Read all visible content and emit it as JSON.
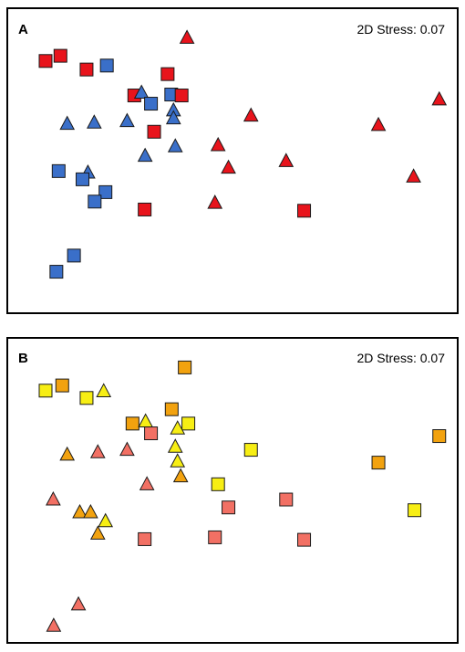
{
  "chart_data": [
    {
      "type": "scatter",
      "panel_label": "A",
      "annotation": "2D Stress: 0.07",
      "xlim": [
        0,
        100
      ],
      "ylim": [
        0,
        100
      ],
      "grid": false,
      "points": [
        {
          "x": 8.5,
          "y": 82.7,
          "shape": "square",
          "color": "#e8141c"
        },
        {
          "x": 11.8,
          "y": 84.4,
          "shape": "square",
          "color": "#e8141c"
        },
        {
          "x": 17.6,
          "y": 79.9,
          "shape": "square",
          "color": "#e8141c"
        },
        {
          "x": 22.1,
          "y": 81.2,
          "shape": "square",
          "color": "#3a6fc9"
        },
        {
          "x": 28.2,
          "y": 71.4,
          "shape": "square",
          "color": "#e8141c"
        },
        {
          "x": 29.8,
          "y": 72.3,
          "shape": "triangle",
          "color": "#3a6fc9"
        },
        {
          "x": 31.9,
          "y": 68.7,
          "shape": "square",
          "color": "#3a6fc9"
        },
        {
          "x": 35.6,
          "y": 78.4,
          "shape": "square",
          "color": "#e8141c"
        },
        {
          "x": 36.4,
          "y": 71.7,
          "shape": "square",
          "color": "#3a6fc9"
        },
        {
          "x": 38.7,
          "y": 71.4,
          "shape": "square",
          "color": "#e8141c"
        },
        {
          "x": 39.9,
          "y": 90.3,
          "shape": "triangle",
          "color": "#e8141c"
        },
        {
          "x": 36.9,
          "y": 66.5,
          "shape": "triangle",
          "color": "#3a6fc9"
        },
        {
          "x": 36.9,
          "y": 63.9,
          "shape": "triangle",
          "color": "#3a6fc9"
        },
        {
          "x": 13.3,
          "y": 62.1,
          "shape": "triangle",
          "color": "#3a6fc9"
        },
        {
          "x": 19.3,
          "y": 62.5,
          "shape": "triangle",
          "color": "#3a6fc9"
        },
        {
          "x": 26.6,
          "y": 63.0,
          "shape": "triangle",
          "color": "#3a6fc9"
        },
        {
          "x": 32.6,
          "y": 59.5,
          "shape": "square",
          "color": "#e8141c"
        },
        {
          "x": 37.3,
          "y": 54.7,
          "shape": "triangle",
          "color": "#3a6fc9"
        },
        {
          "x": 30.6,
          "y": 51.6,
          "shape": "triangle",
          "color": "#3a6fc9"
        },
        {
          "x": 11.4,
          "y": 46.6,
          "shape": "square",
          "color": "#3a6fc9"
        },
        {
          "x": 17.9,
          "y": 46.1,
          "shape": "triangle",
          "color": "#3a6fc9"
        },
        {
          "x": 16.7,
          "y": 43.9,
          "shape": "square",
          "color": "#3a6fc9"
        },
        {
          "x": 21.8,
          "y": 39.7,
          "shape": "square",
          "color": "#3a6fc9"
        },
        {
          "x": 19.4,
          "y": 36.6,
          "shape": "square",
          "color": "#3a6fc9"
        },
        {
          "x": 30.5,
          "y": 34.0,
          "shape": "square",
          "color": "#e8141c"
        },
        {
          "x": 46.8,
          "y": 55.1,
          "shape": "triangle",
          "color": "#e8141c"
        },
        {
          "x": 54.1,
          "y": 64.8,
          "shape": "triangle",
          "color": "#e8141c"
        },
        {
          "x": 49.1,
          "y": 47.7,
          "shape": "triangle",
          "color": "#e8141c"
        },
        {
          "x": 46.1,
          "y": 36.2,
          "shape": "triangle",
          "color": "#e8141c"
        },
        {
          "x": 61.9,
          "y": 49.9,
          "shape": "triangle",
          "color": "#e8141c"
        },
        {
          "x": 65.9,
          "y": 33.6,
          "shape": "square",
          "color": "#e8141c"
        },
        {
          "x": 82.4,
          "y": 61.7,
          "shape": "triangle",
          "color": "#e8141c"
        },
        {
          "x": 95.9,
          "y": 70.1,
          "shape": "triangle",
          "color": "#e8141c"
        },
        {
          "x": 90.2,
          "y": 44.8,
          "shape": "triangle",
          "color": "#e8141c"
        },
        {
          "x": 10.9,
          "y": 13.6,
          "shape": "square",
          "color": "#3a6fc9"
        },
        {
          "x": 14.8,
          "y": 18.9,
          "shape": "square",
          "color": "#3a6fc9"
        }
      ]
    },
    {
      "type": "scatter",
      "panel_label": "B",
      "annotation": "2D Stress: 0.07",
      "xlim": [
        0,
        100
      ],
      "ylim": [
        0,
        100
      ],
      "grid": false,
      "points": [
        {
          "x": 39.4,
          "y": 90.3,
          "shape": "square",
          "color": "#f2a20f"
        },
        {
          "x": 8.5,
          "y": 82.7,
          "shape": "square",
          "color": "#f7ee14"
        },
        {
          "x": 12.2,
          "y": 84.4,
          "shape": "square",
          "color": "#f2a20f"
        },
        {
          "x": 17.6,
          "y": 80.3,
          "shape": "square",
          "color": "#f7ee14"
        },
        {
          "x": 21.4,
          "y": 82.5,
          "shape": "triangle",
          "color": "#f7ee14"
        },
        {
          "x": 27.8,
          "y": 71.9,
          "shape": "square",
          "color": "#f2a20f"
        },
        {
          "x": 30.7,
          "y": 72.6,
          "shape": "triangle",
          "color": "#f7ee14"
        },
        {
          "x": 31.9,
          "y": 68.7,
          "shape": "square",
          "color": "#f27064"
        },
        {
          "x": 36.5,
          "y": 76.6,
          "shape": "square",
          "color": "#f2a20f"
        },
        {
          "x": 40.2,
          "y": 71.9,
          "shape": "square",
          "color": "#f7ee14"
        },
        {
          "x": 37.8,
          "y": 70.3,
          "shape": "triangle",
          "color": "#f7ee14"
        },
        {
          "x": 37.3,
          "y": 64.3,
          "shape": "triangle",
          "color": "#f7ee14"
        },
        {
          "x": 37.8,
          "y": 59.5,
          "shape": "triangle",
          "color": "#f7ee14"
        },
        {
          "x": 38.5,
          "y": 54.6,
          "shape": "triangle",
          "color": "#f2a20f"
        },
        {
          "x": 13.3,
          "y": 61.7,
          "shape": "triangle",
          "color": "#f2a20f"
        },
        {
          "x": 20.1,
          "y": 62.5,
          "shape": "triangle",
          "color": "#f27064"
        },
        {
          "x": 26.6,
          "y": 63.3,
          "shape": "triangle",
          "color": "#f27064"
        },
        {
          "x": 31.0,
          "y": 52.0,
          "shape": "triangle",
          "color": "#f27064"
        },
        {
          "x": 10.2,
          "y": 47.0,
          "shape": "triangle",
          "color": "#f27064"
        },
        {
          "x": 16.1,
          "y": 42.8,
          "shape": "triangle",
          "color": "#f2a20f"
        },
        {
          "x": 18.5,
          "y": 42.8,
          "shape": "triangle",
          "color": "#f2a20f"
        },
        {
          "x": 21.8,
          "y": 39.9,
          "shape": "triangle",
          "color": "#f7ee14"
        },
        {
          "x": 20.1,
          "y": 35.8,
          "shape": "triangle",
          "color": "#f2a20f"
        },
        {
          "x": 46.8,
          "y": 52.0,
          "shape": "square",
          "color": "#f7ee14"
        },
        {
          "x": 54.1,
          "y": 63.3,
          "shape": "square",
          "color": "#f7ee14"
        },
        {
          "x": 49.1,
          "y": 44.4,
          "shape": "square",
          "color": "#f27064"
        },
        {
          "x": 30.5,
          "y": 34.0,
          "shape": "square",
          "color": "#f27064"
        },
        {
          "x": 46.1,
          "y": 34.6,
          "shape": "square",
          "color": "#f27064"
        },
        {
          "x": 61.9,
          "y": 47.0,
          "shape": "square",
          "color": "#f27064"
        },
        {
          "x": 65.9,
          "y": 33.8,
          "shape": "square",
          "color": "#f27064"
        },
        {
          "x": 82.4,
          "y": 59.1,
          "shape": "square",
          "color": "#f2a20f"
        },
        {
          "x": 95.9,
          "y": 67.8,
          "shape": "square",
          "color": "#f2a20f"
        },
        {
          "x": 90.4,
          "y": 43.5,
          "shape": "square",
          "color": "#f7ee14"
        },
        {
          "x": 15.8,
          "y": 12.6,
          "shape": "triangle",
          "color": "#f27064"
        },
        {
          "x": 10.3,
          "y": 5.6,
          "shape": "triangle",
          "color": "#f27064"
        }
      ]
    }
  ]
}
